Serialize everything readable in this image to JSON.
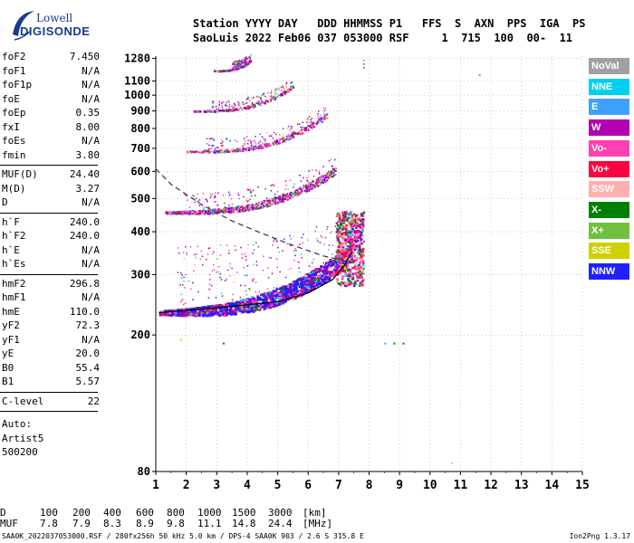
{
  "logo": {
    "line1": "Lowell",
    "line2": "DIGISONDE"
  },
  "header": {
    "labels": "Station YYYY DAY   DDD HHMMSS P1   FFS  S  AXN  PPS  IGA  PS",
    "values": "SaoLuis 2022 Feb06 037 053000 RSF     1  715  100  00-  11"
  },
  "params": {
    "group1": [
      [
        "foF2",
        "7.450"
      ],
      [
        "foF1",
        "N/A"
      ],
      [
        "foF1p",
        "N/A"
      ],
      [
        "foE",
        "N/A"
      ],
      [
        "foEp",
        "0.35"
      ],
      [
        "fxI",
        "8.00"
      ],
      [
        "foEs",
        "N/A"
      ],
      [
        "fmin",
        "3.80"
      ]
    ],
    "group2": [
      [
        "MUF(D)",
        "24.40"
      ],
      [
        "M(D)",
        "3.27"
      ],
      [
        "D",
        "N/A"
      ]
    ],
    "group3": [
      [
        "h`F",
        "240.0"
      ],
      [
        "h`F2",
        "240.0"
      ],
      [
        "h`E",
        "N/A"
      ],
      [
        "h`Es",
        "N/A"
      ]
    ],
    "group4": [
      [
        "hmF2",
        "296.8"
      ],
      [
        "hmF1",
        "N/A"
      ],
      [
        "hmE",
        "110.0"
      ],
      [
        "yF2",
        "72.3"
      ],
      [
        "yF1",
        "N/A"
      ],
      [
        "yE",
        "20.0"
      ],
      [
        "B0",
        "55.4"
      ],
      [
        "B1",
        "5.57"
      ]
    ],
    "group5": [
      [
        "C-level",
        "22"
      ]
    ]
  },
  "auto": {
    "line1": "Auto:",
    "line2": "Artist5",
    "line3": "500200"
  },
  "legend": [
    {
      "name": "NoVal",
      "color": "#a0a0a0"
    },
    {
      "name": "NNE",
      "color": "#00d0f0"
    },
    {
      "name": "E",
      "color": "#40a0ff"
    },
    {
      "name": "W",
      "color": "#b000b0"
    },
    {
      "name": "Vo-",
      "color": "#ff40b0"
    },
    {
      "name": "Vo+",
      "color": "#ff0040"
    },
    {
      "name": "SSW",
      "color": "#ffb0b0"
    },
    {
      "name": "X-",
      "color": "#008000"
    },
    {
      "name": "X+",
      "color": "#70c040"
    },
    {
      "name": "SSE",
      "color": "#d0d000"
    },
    {
      "name": "NNW",
      "color": "#2020ff"
    }
  ],
  "muf_table": {
    "d_label": "D",
    "d_values": [
      "100",
      "200",
      "400",
      "600",
      "800",
      "1000",
      "1500",
      "3000",
      "[km]"
    ],
    "muf_label": "MUF",
    "muf_values": [
      "7.8",
      "7.9",
      "8.3",
      "8.9",
      "9.8",
      "11.1",
      "14.8",
      "24.4",
      "[MHz]"
    ]
  },
  "footer": {
    "left": "SAA0K_2022037053000.RSF / 280fx256h 50 kHz 5.0 km / DPS-4 SAA0K 903 / 2.6 S 315.8 E",
    "right": "Ion2Png 1.3.17"
  },
  "chart_data": {
    "type": "scatter",
    "title": "",
    "xlabel": "",
    "ylabel": "",
    "xlim": [
      1,
      15
    ],
    "ylim": [
      80,
      1300
    ],
    "y_scale": "log",
    "x_ticks": [
      1,
      2,
      3,
      4,
      5,
      6,
      7,
      8,
      9,
      10,
      11,
      12,
      13,
      14,
      15
    ],
    "y_ticks": [
      80,
      200,
      300,
      400,
      500,
      600,
      700,
      800,
      900,
      1000,
      1100,
      1280
    ],
    "grid": true,
    "traces": [
      {
        "name": "F2 trace",
        "echo": "first-hop",
        "freq_range": [
          1.1,
          7.4
        ],
        "height_range": [
          232,
          340
        ]
      },
      {
        "name": "F2 trace",
        "echo": "second-hop",
        "freq_range": [
          1.3,
          6.9
        ],
        "height_range": [
          455,
          600
        ]
      },
      {
        "name": "F2 trace",
        "echo": "third-hop",
        "freq_range": [
          2.0,
          6.6
        ],
        "height_range": [
          685,
          870
        ]
      },
      {
        "name": "F2 trace",
        "echo": "fourth-hop",
        "freq_range": [
          2.2,
          5.5
        ],
        "height_range": [
          900,
          1060
        ]
      },
      {
        "name": "F2 trace",
        "echo": "fifth-hop",
        "freq_range": [
          2.9,
          4.1
        ],
        "height_range": [
          1180,
          1260
        ]
      }
    ],
    "curves": [
      {
        "name": "model profile",
        "style": "solid",
        "points": [
          [
            1.1,
            232
          ],
          [
            3,
            240
          ],
          [
            5,
            250
          ],
          [
            6,
            265
          ],
          [
            6.8,
            290
          ],
          [
            7.2,
            320
          ],
          [
            7.45,
            350
          ]
        ]
      },
      {
        "name": "model profile",
        "style": "dashed",
        "points": [
          [
            1.0,
            610
          ],
          [
            1.5,
            550
          ],
          [
            2.5,
            480
          ],
          [
            3.5,
            430
          ],
          [
            4.5,
            395
          ],
          [
            5.5,
            365
          ],
          [
            6.5,
            340
          ],
          [
            7.45,
            325
          ]
        ]
      }
    ]
  }
}
